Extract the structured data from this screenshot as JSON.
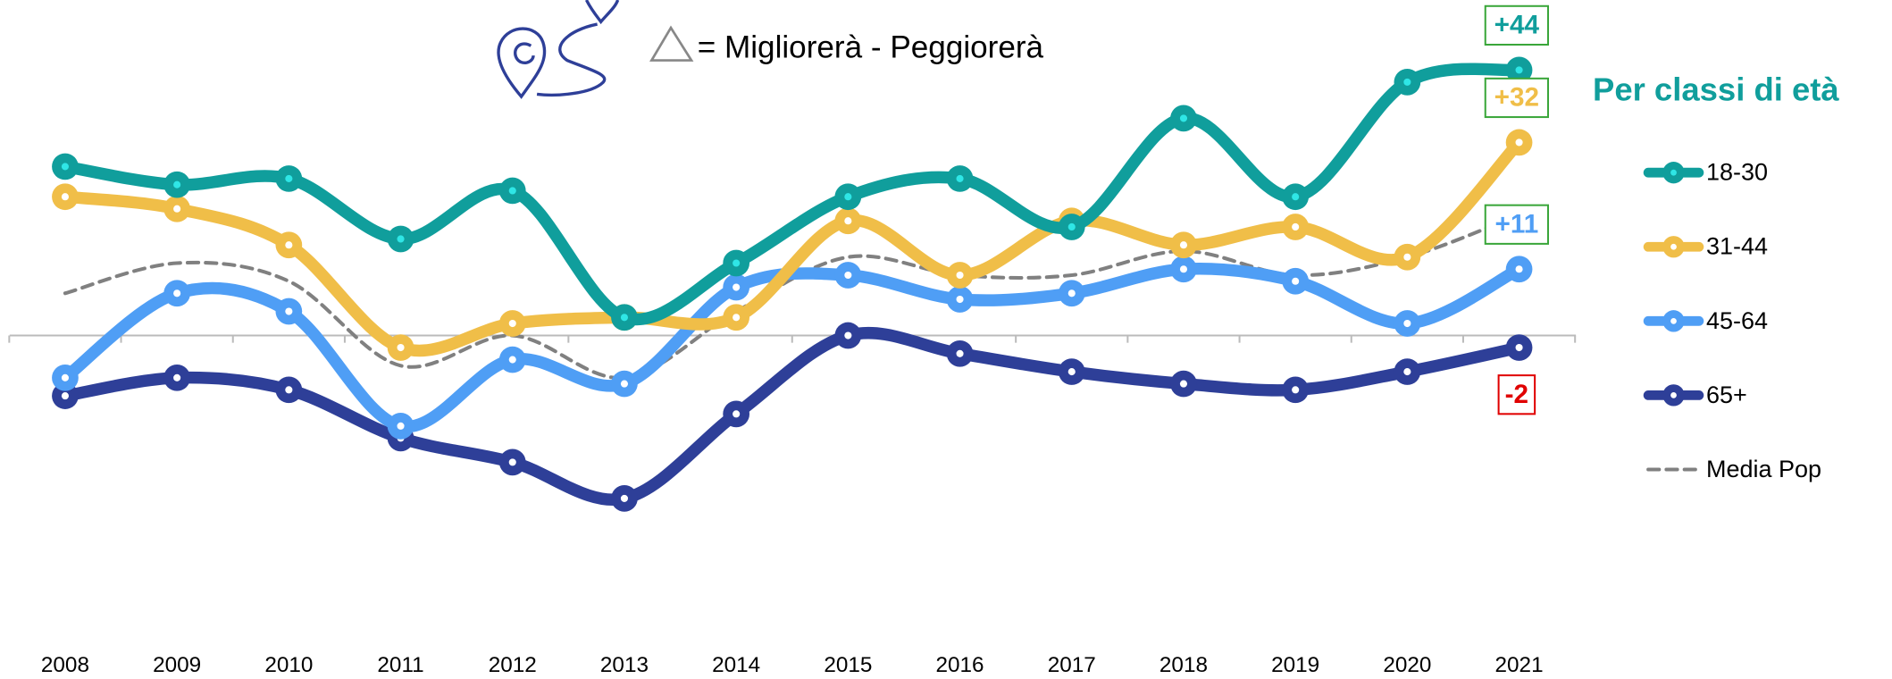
{
  "chart_data": {
    "type": "line",
    "title": "= Migliorerà - Peggiorerà",
    "legend_title": "Per classi di età",
    "categories": [
      "2008",
      "2009",
      "2010",
      "2011",
      "2012",
      "2013",
      "2014",
      "2015",
      "2016",
      "2017",
      "2018",
      "2019",
      "2020",
      "2021"
    ],
    "ylim": [
      -55,
      55
    ],
    "legend": "right",
    "series": [
      {
        "name": "18-30",
        "color": "#109e9c",
        "values": [
          28,
          25,
          26,
          16,
          24,
          3,
          12,
          23,
          26,
          18,
          36,
          23,
          42,
          44
        ],
        "value_labels": [
          null,
          null,
          null,
          null,
          null,
          null,
          null,
          null,
          null,
          null,
          null,
          null,
          null,
          "+44"
        ]
      },
      {
        "name": "31-44",
        "color": "#f0be48",
        "values": [
          23,
          21,
          15,
          -2,
          2,
          3,
          3,
          19,
          10,
          19,
          15,
          18,
          13,
          32
        ],
        "value_labels": [
          null,
          null,
          null,
          null,
          null,
          null,
          null,
          null,
          null,
          null,
          null,
          null,
          null,
          "+32"
        ]
      },
      {
        "name": "45-64",
        "color": "#4f9ef5",
        "values": [
          -7,
          7,
          4,
          -15,
          -4,
          -8,
          8,
          10,
          6,
          7,
          11,
          9,
          2,
          11
        ],
        "value_labels": [
          null,
          null,
          null,
          null,
          null,
          null,
          null,
          null,
          null,
          null,
          null,
          null,
          null,
          "+11"
        ]
      },
      {
        "name": "65+",
        "color": "#2e3f98",
        "values": [
          -10,
          -7,
          -9,
          -17,
          -21,
          -27,
          -13,
          0,
          -3,
          -6,
          -8,
          -9,
          -6,
          -2
        ],
        "value_labels": [
          null,
          null,
          null,
          null,
          null,
          null,
          null,
          null,
          null,
          null,
          null,
          null,
          null,
          "-2"
        ]
      },
      {
        "name": "Media Pop",
        "color": "#808080",
        "dashed": true,
        "values": [
          7,
          12,
          9,
          -5,
          0,
          -7,
          4,
          13,
          10,
          10,
          14,
          10,
          13,
          20
        ]
      }
    ]
  }
}
